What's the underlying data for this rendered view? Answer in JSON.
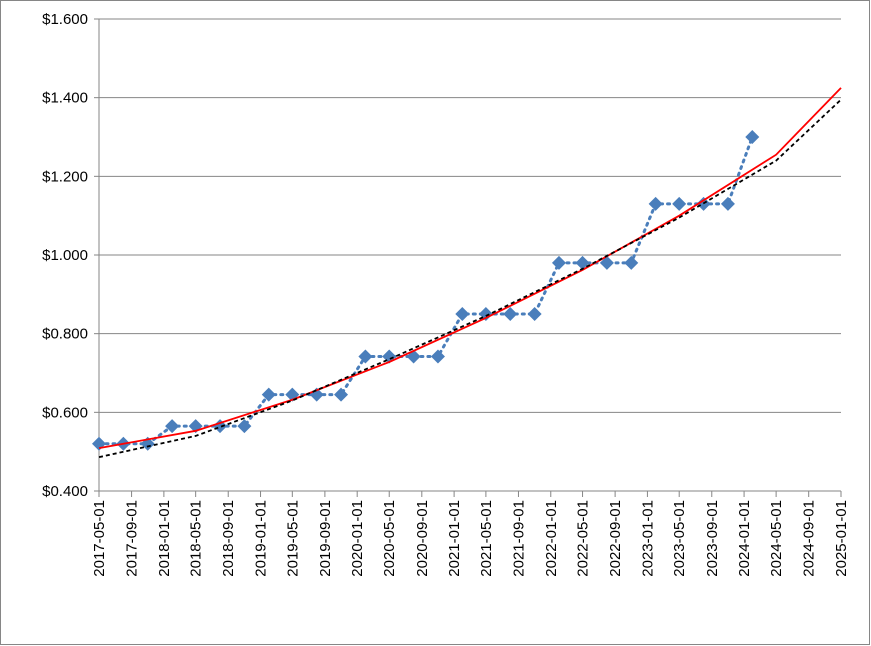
{
  "chart_data": {
    "type": "line",
    "x": [
      "2017-05-01",
      "2017-08-01",
      "2017-11-01",
      "2018-02-01",
      "2018-05-01",
      "2018-08-01",
      "2018-11-01",
      "2019-02-01",
      "2019-05-01",
      "2019-08-01",
      "2019-11-01",
      "2020-02-01",
      "2020-05-01",
      "2020-08-01",
      "2020-11-01",
      "2021-02-01",
      "2021-05-01",
      "2021-08-01",
      "2021-11-01",
      "2022-02-01",
      "2022-05-01",
      "2022-08-01",
      "2022-11-01",
      "2023-02-01",
      "2023-05-01",
      "2023-08-01",
      "2023-11-01",
      "2024-02-01"
    ],
    "series": [
      {
        "color": "#4a7ebb",
        "marker": "diamond",
        "line": "dotted",
        "values": [
          0.52,
          0.52,
          0.52,
          0.565,
          0.565,
          0.565,
          0.565,
          0.645,
          0.645,
          0.645,
          0.645,
          0.742,
          0.742,
          0.742,
          0.742,
          0.85,
          0.85,
          0.85,
          0.85,
          0.98,
          0.98,
          0.98,
          0.98,
          1.13,
          1.13,
          1.13,
          1.13,
          1.3
        ]
      },
      {
        "color": "#ff0000",
        "line": "solid",
        "x": [
          "2017-05-01",
          "2018-05-01",
          "2019-05-01",
          "2020-05-01",
          "2021-05-01",
          "2022-05-01",
          "2023-05-01",
          "2024-05-01",
          "2025-01-01"
        ],
        "values": [
          0.509,
          0.553,
          0.632,
          0.728,
          0.84,
          0.962,
          1.1,
          1.255,
          1.425
        ]
      },
      {
        "color": "#000000",
        "line": "dashed",
        "x": [
          "2017-05-01",
          "2018-05-01",
          "2019-05-01",
          "2020-05-01",
          "2021-05-01",
          "2022-05-01",
          "2023-05-01",
          "2024-05-01",
          "2025-01-01"
        ],
        "values": [
          0.486,
          0.54,
          0.63,
          0.735,
          0.845,
          0.965,
          1.095,
          1.24,
          1.395
        ]
      }
    ],
    "xlim": [
      "2017-05-01",
      "2025-01-01"
    ],
    "xticks": [
      "2017-05-01",
      "2017-09-01",
      "2018-01-01",
      "2018-05-01",
      "2018-09-01",
      "2019-01-01",
      "2019-05-01",
      "2019-09-01",
      "2020-01-01",
      "2020-05-01",
      "2020-09-01",
      "2021-01-01",
      "2021-05-01",
      "2021-09-01",
      "2022-01-01",
      "2022-05-01",
      "2022-09-01",
      "2023-01-01",
      "2023-05-01",
      "2023-09-01",
      "2024-01-01",
      "2024-05-01",
      "2024-09-01",
      "2025-01-01"
    ],
    "ylim": [
      0.4,
      1.6
    ],
    "yticks": [
      {
        "value": 0.4,
        "label": "$0.400"
      },
      {
        "value": 0.6,
        "label": "$0.600"
      },
      {
        "value": 0.8,
        "label": "$0.800"
      },
      {
        "value": 1.0,
        "label": "$1.000"
      },
      {
        "value": 1.2,
        "label": "$1.200"
      },
      {
        "value": 1.4,
        "label": "$1.400"
      },
      {
        "value": 1.6,
        "label": "$1.600"
      }
    ],
    "grid": true
  }
}
